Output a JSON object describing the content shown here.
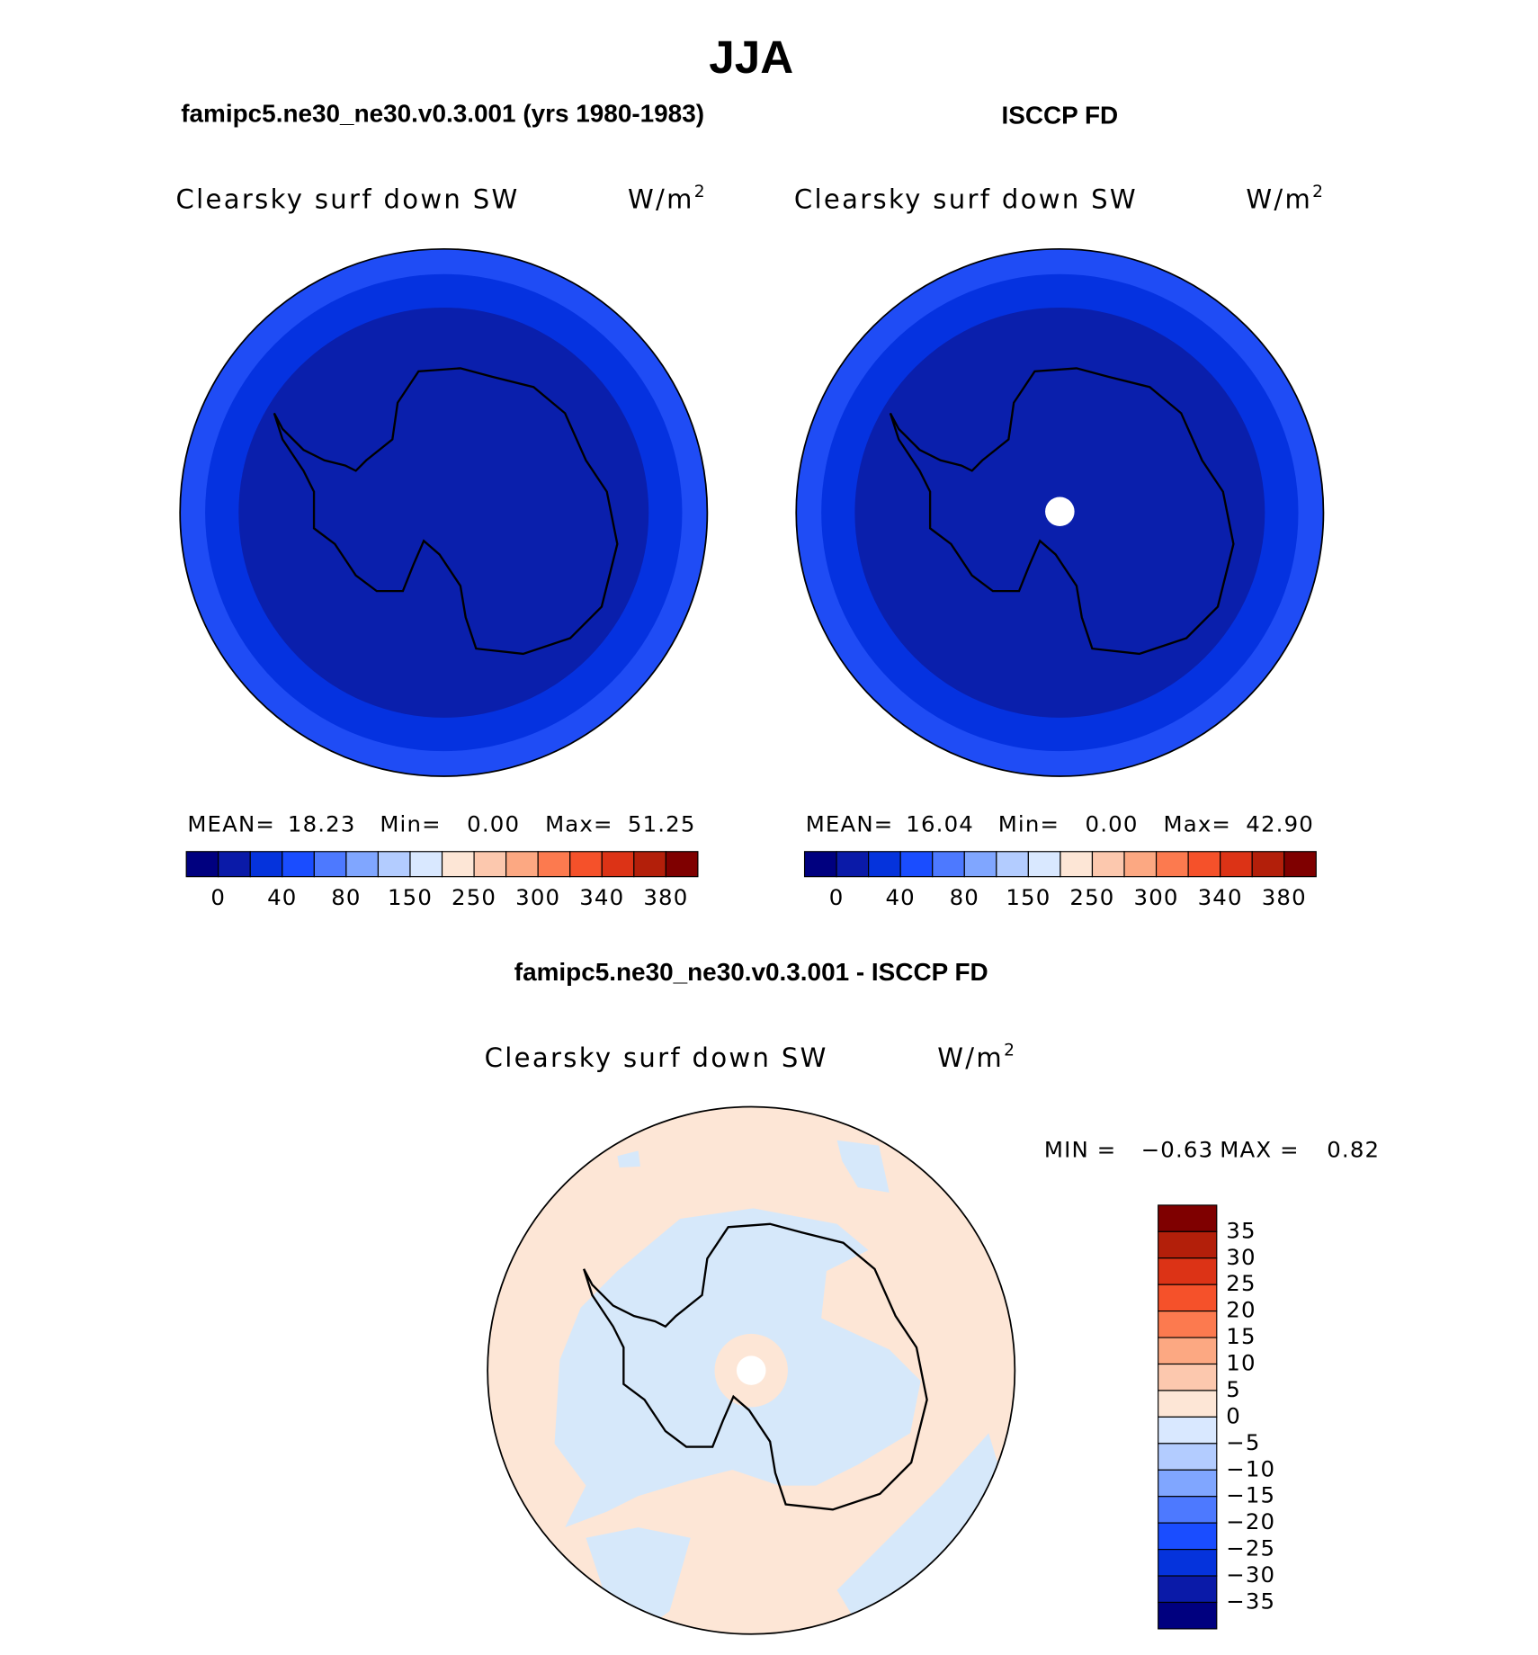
{
  "title": "JJA",
  "panels": [
    {
      "title": "famipc5.ne30_ne30.v0.3.001 (yrs 1980-1983)",
      "variable": "Clearsky surf down SW",
      "units": "W/m",
      "units_sup": "2",
      "stats": [
        {
          "label": "MEAN=",
          "value": "18.23"
        },
        {
          "label": "Min=",
          "value": "0.00"
        },
        {
          "label": "Max=",
          "value": "51.25"
        }
      ]
    },
    {
      "title": "ISCCP FD",
      "variable": "Clearsky surf down SW",
      "units": "W/m",
      "units_sup": "2",
      "stats": [
        {
          "label": "MEAN=",
          "value": "16.04"
        },
        {
          "label": "Min=",
          "value": "0.00"
        },
        {
          "label": "Max=",
          "value": "42.90"
        }
      ]
    }
  ],
  "colorbar": {
    "colors": [
      "#00007f",
      "#0a1aa8",
      "#0533dc",
      "#1a4dff",
      "#4d79ff",
      "#80a6ff",
      "#b3ccff",
      "#d9e8ff",
      "#fde6d6",
      "#fcc8ae",
      "#fca882",
      "#fc7a4f",
      "#f5512a",
      "#dc3316",
      "#b31f0a",
      "#7f0000"
    ],
    "labels": [
      "0",
      "40",
      "80",
      "150",
      "250",
      "300",
      "340",
      "380"
    ]
  },
  "difference": {
    "title": "famipc5.ne30_ne30.v0.3.001 - ISCCP FD",
    "variable": "Clearsky surf down SW",
    "units": "W/m",
    "units_sup": "2",
    "stats": [
      {
        "label": "MIN =",
        "value": "−0.63"
      },
      {
        "label": "MAX =",
        "value": "0.82"
      }
    ],
    "colorbar": {
      "colors": [
        "#7f0000",
        "#b31f0a",
        "#dc3316",
        "#f5512a",
        "#fc7a4f",
        "#fca882",
        "#fcc8ae",
        "#fde6d6",
        "#d9e8ff",
        "#b3ccff",
        "#80a6ff",
        "#4d79ff",
        "#1a4dff",
        "#0533dc",
        "#0a1aa8",
        "#00007f"
      ],
      "labels": [
        "35",
        "30",
        "25",
        "20",
        "15",
        "10",
        "5",
        "0",
        "−5",
        "−10",
        "−15",
        "−20",
        "−25",
        "−30",
        "−35"
      ]
    }
  }
}
